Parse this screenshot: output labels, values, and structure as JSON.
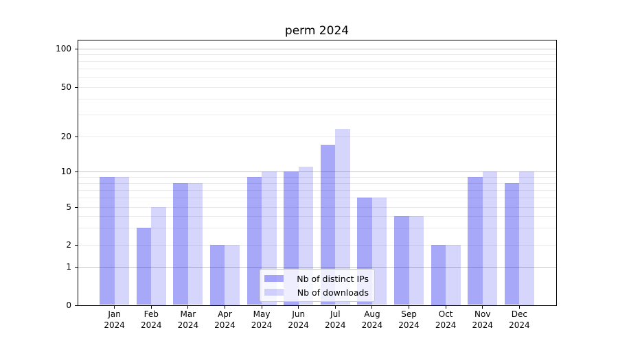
{
  "title": "perm 2024",
  "chart_data": {
    "type": "bar",
    "title": "perm 2024",
    "categories": [
      "Jan 2024",
      "Feb 2024",
      "Mar 2024",
      "Apr 2024",
      "May 2024",
      "Jun 2024",
      "Jul 2024",
      "Aug 2024",
      "Sep 2024",
      "Oct 2024",
      "Nov 2024",
      "Dec 2024"
    ],
    "series": [
      {
        "name": "Nb of distinct IPs",
        "color": "rgba(0,0,238,0.34)",
        "values": [
          9,
          3,
          8,
          2,
          9,
          10,
          17,
          6,
          4,
          2,
          9,
          8
        ]
      },
      {
        "name": "Nb of downloads",
        "color": "rgba(0,0,238,0.16)",
        "values": [
          9,
          5,
          8,
          2,
          10,
          11,
          23,
          6,
          4,
          2,
          10,
          10
        ]
      }
    ],
    "xlabel": "",
    "ylabel": "",
    "yscale": "symlog",
    "ylim": [
      0,
      110
    ],
    "y_tick_values": [
      0,
      1,
      2,
      5,
      10,
      20,
      50,
      100
    ],
    "y_major_gridlines": [
      1,
      10,
      100
    ],
    "y_minor_gridlines": [
      2,
      3,
      4,
      5,
      6,
      7,
      8,
      9,
      20,
      30,
      40,
      50,
      60,
      70,
      80,
      90
    ],
    "grid": true,
    "legend_position": "lower center",
    "colors": {
      "major_grid": "#c3c3c3",
      "minor_grid": "#ebebeb",
      "spine": "#000000",
      "text": "#000000"
    }
  }
}
